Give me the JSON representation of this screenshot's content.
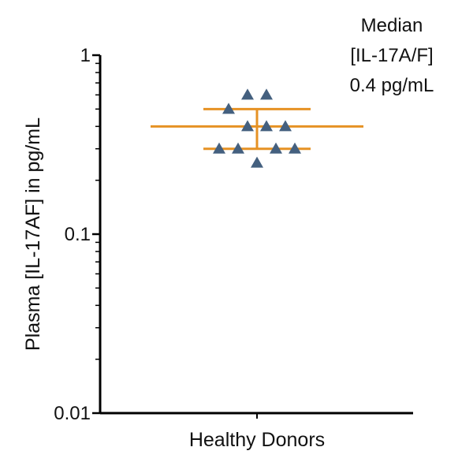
{
  "chart_data": {
    "type": "scatter",
    "categories": [
      "Healthy Donors"
    ],
    "xlabel": "Healthy Donors",
    "ylabel": "Plasma [IL-17AF] in pg/mL",
    "yscale": "log",
    "ylim": [
      0.01,
      1
    ],
    "yticks": [
      {
        "value": 1,
        "label": "1"
      },
      {
        "value": 0.1,
        "label": "0.1"
      },
      {
        "value": 0.01,
        "label": "0.01"
      }
    ],
    "grid": false,
    "series": [
      {
        "marker": "triangle",
        "color": "#44607f",
        "points": [
          {
            "x_offset": -0.1,
            "y": 0.6
          },
          {
            "x_offset": 0.1,
            "y": 0.6
          },
          {
            "x_offset": -0.3,
            "y": 0.5
          },
          {
            "x_offset": -0.1,
            "y": 0.4
          },
          {
            "x_offset": 0.1,
            "y": 0.4
          },
          {
            "x_offset": 0.3,
            "y": 0.4
          },
          {
            "x_offset": -0.4,
            "y": 0.3
          },
          {
            "x_offset": -0.2,
            "y": 0.3
          },
          {
            "x_offset": 0.2,
            "y": 0.3
          },
          {
            "x_offset": 0.4,
            "y": 0.3
          },
          {
            "x_offset": 0.0,
            "y": 0.25
          }
        ]
      }
    ],
    "summary": {
      "median": 0.4,
      "q1": 0.3,
      "q3": 0.5,
      "color": "#e69224"
    },
    "annotation": {
      "lines": [
        "Median",
        "[IL-17A/F]",
        "0.4 pg/mL"
      ]
    }
  }
}
